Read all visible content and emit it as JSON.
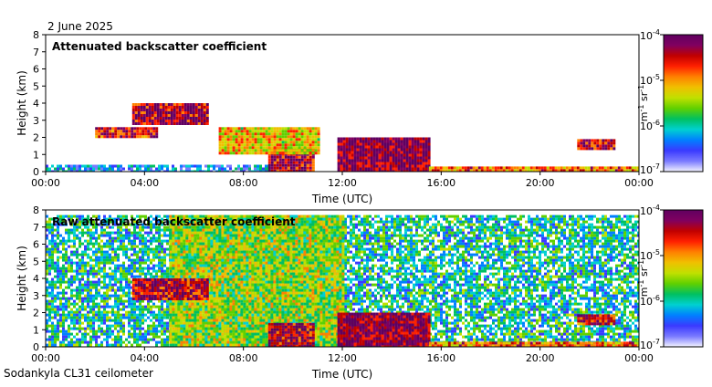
{
  "date": "2 June 2025",
  "footer": "Sodankyla CL31 ceilometer",
  "colors": {
    "colorbar": [
      "#f4f4ff",
      "#7a7aff",
      "#3a3aff",
      "#0080ff",
      "#00d0d0",
      "#00c060",
      "#60d000",
      "#c0e000",
      "#f0c000",
      "#ff8000",
      "#ff2000",
      "#c00000",
      "#800060",
      "#600060"
    ]
  },
  "chart_data": [
    {
      "type": "heatmap",
      "title": "Attenuated backscatter coefficient",
      "xlabel": "Time (UTC)",
      "ylabel": "Height (km)",
      "x_ticks": [
        "00:00",
        "04:00",
        "08:00",
        "12:00",
        "16:00",
        "20:00",
        "00:00"
      ],
      "x_range_hours": [
        0,
        24
      ],
      "y_ticks": [
        "0",
        "1",
        "2",
        "3",
        "4",
        "5",
        "6",
        "7",
        "8"
      ],
      "ylim": [
        0,
        8
      ],
      "colorbar": {
        "scale": "log",
        "range": [
          1e-07,
          0.0001
        ],
        "ticks": [
          {
            "base": "10",
            "exp": "-4"
          },
          {
            "base": "10",
            "exp": "-5"
          },
          {
            "base": "10",
            "exp": "-6"
          },
          {
            "base": "10",
            "exp": "-7"
          }
        ],
        "unit_base": "m",
        "unit_base_exp": "-1",
        "unit_sr": "sr",
        "unit_sr_exp": "-1"
      },
      "features": [
        {
          "t_start": 0.0,
          "t_end": 9.0,
          "h_bottom": 0.0,
          "h_top": 0.4,
          "level": 0.25
        },
        {
          "t_start": 9.0,
          "t_end": 10.8,
          "h_bottom": 0.0,
          "h_top": 1.4,
          "level": 0.85
        },
        {
          "t_start": 11.8,
          "t_end": 15.5,
          "h_bottom": 0.0,
          "h_top": 2.0,
          "level": 0.9
        },
        {
          "t_start": 15.5,
          "t_end": 24.0,
          "h_bottom": 0.0,
          "h_top": 0.3,
          "level": 0.7
        },
        {
          "t_start": 2.0,
          "t_end": 4.5,
          "h_bottom": 2.1,
          "h_top": 2.6,
          "level": 0.8
        },
        {
          "t_start": 3.5,
          "t_end": 6.5,
          "h_bottom": 2.8,
          "h_top": 4.0,
          "level": 0.85
        },
        {
          "t_start": 7.0,
          "t_end": 11.0,
          "h_bottom": 1.0,
          "h_top": 2.6,
          "level": 0.6
        },
        {
          "t_start": 21.5,
          "t_end": 23.0,
          "h_bottom": 1.4,
          "h_top": 1.9,
          "level": 0.8
        }
      ]
    },
    {
      "type": "heatmap",
      "title": "Raw attenuated backscatter coefficient",
      "xlabel": "Time (UTC)",
      "ylabel": "Height (km)",
      "x_ticks": [
        "00:00",
        "04:00",
        "08:00",
        "12:00",
        "16:00",
        "20:00",
        "00:00"
      ],
      "x_range_hours": [
        0,
        24
      ],
      "y_ticks": [
        "0",
        "1",
        "2",
        "3",
        "4",
        "5",
        "6",
        "7",
        "8"
      ],
      "ylim": [
        0,
        8
      ],
      "colorbar": {
        "scale": "log",
        "range": [
          1e-07,
          0.0001
        ],
        "ticks": [
          {
            "base": "10",
            "exp": "-4"
          },
          {
            "base": "10",
            "exp": "-5"
          },
          {
            "base": "10",
            "exp": "-6"
          },
          {
            "base": "10",
            "exp": "-7"
          }
        ],
        "unit_base": "m",
        "unit_base_exp": "-1",
        "unit_sr": "sr",
        "unit_sr_exp": "-1"
      },
      "features": [
        {
          "t_start": 0.0,
          "t_end": 24.0,
          "h_bottom": 0.0,
          "h_top": 7.7,
          "level": 0.35
        },
        {
          "t_start": 5.0,
          "t_end": 12.0,
          "h_bottom": 0.0,
          "h_top": 7.7,
          "level": 0.5
        },
        {
          "t_start": 9.0,
          "t_end": 10.8,
          "h_bottom": 0.0,
          "h_top": 1.4,
          "level": 0.85
        },
        {
          "t_start": 11.8,
          "t_end": 15.5,
          "h_bottom": 0.0,
          "h_top": 2.0,
          "level": 0.9
        },
        {
          "t_start": 15.5,
          "t_end": 24.0,
          "h_bottom": 0.0,
          "h_top": 0.3,
          "level": 0.7
        },
        {
          "t_start": 3.5,
          "t_end": 6.5,
          "h_bottom": 2.8,
          "h_top": 4.0,
          "level": 0.85
        },
        {
          "t_start": 21.5,
          "t_end": 23.0,
          "h_bottom": 1.4,
          "h_top": 1.9,
          "level": 0.8
        }
      ]
    }
  ]
}
